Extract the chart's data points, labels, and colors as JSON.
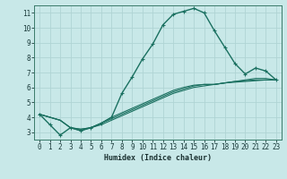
{
  "xlabel": "Humidex (Indice chaleur)",
  "background_color": "#c8e8e8",
  "grid_color": "#b0d4d4",
  "line_color": "#1a7060",
  "xlim": [
    -0.5,
    23.5
  ],
  "ylim": [
    2.5,
    11.5
  ],
  "xticks": [
    0,
    1,
    2,
    3,
    4,
    5,
    6,
    7,
    8,
    9,
    10,
    11,
    12,
    13,
    14,
    15,
    16,
    17,
    18,
    19,
    20,
    21,
    22,
    23
  ],
  "yticks": [
    3,
    4,
    5,
    6,
    7,
    8,
    9,
    10,
    11
  ],
  "lines": [
    {
      "x": [
        0,
        1,
        2,
        3,
        4,
        5,
        6,
        7,
        8,
        9,
        10,
        11,
        12,
        13,
        14,
        15,
        16,
        17,
        18,
        19,
        20,
        21,
        22,
        23
      ],
      "y": [
        4.2,
        3.5,
        2.8,
        3.3,
        3.1,
        3.3,
        3.6,
        4.0,
        5.6,
        6.7,
        7.9,
        8.9,
        10.2,
        10.9,
        11.1,
        11.3,
        11.0,
        9.8,
        8.7,
        7.6,
        6.9,
        7.3,
        7.1,
        6.5
      ],
      "marker": true,
      "linewidth": 1.0
    },
    {
      "x": [
        0,
        1,
        2,
        3,
        4,
        5,
        6,
        7,
        8,
        9,
        10,
        11,
        12,
        13,
        14,
        15,
        16,
        17,
        18,
        19,
        20,
        21,
        22,
        23
      ],
      "y": [
        4.2,
        4.0,
        3.8,
        3.3,
        3.2,
        3.3,
        3.5,
        3.8,
        4.1,
        4.4,
        4.7,
        5.0,
        5.3,
        5.6,
        5.8,
        6.0,
        6.1,
        6.2,
        6.3,
        6.4,
        6.5,
        6.6,
        6.6,
        6.5
      ],
      "marker": false,
      "linewidth": 0.8
    },
    {
      "x": [
        0,
        1,
        2,
        3,
        4,
        5,
        6,
        7,
        8,
        9,
        10,
        11,
        12,
        13,
        14,
        15,
        16,
        17,
        18,
        19,
        20,
        21,
        22,
        23
      ],
      "y": [
        4.2,
        4.0,
        3.8,
        3.3,
        3.2,
        3.3,
        3.6,
        3.9,
        4.2,
        4.5,
        4.8,
        5.1,
        5.4,
        5.7,
        5.9,
        6.1,
        6.2,
        6.2,
        6.3,
        6.4,
        6.45,
        6.5,
        6.5,
        6.5
      ],
      "marker": false,
      "linewidth": 0.8
    },
    {
      "x": [
        0,
        1,
        2,
        3,
        4,
        5,
        6,
        7,
        8,
        9,
        10,
        11,
        12,
        13,
        14,
        15,
        16,
        17,
        18,
        19,
        20,
        21,
        22,
        23
      ],
      "y": [
        4.2,
        4.0,
        3.8,
        3.3,
        3.1,
        3.3,
        3.6,
        4.0,
        4.3,
        4.6,
        4.9,
        5.2,
        5.5,
        5.8,
        6.0,
        6.15,
        6.2,
        6.2,
        6.3,
        6.35,
        6.4,
        6.45,
        6.5,
        6.5
      ],
      "marker": false,
      "linewidth": 0.8
    }
  ]
}
